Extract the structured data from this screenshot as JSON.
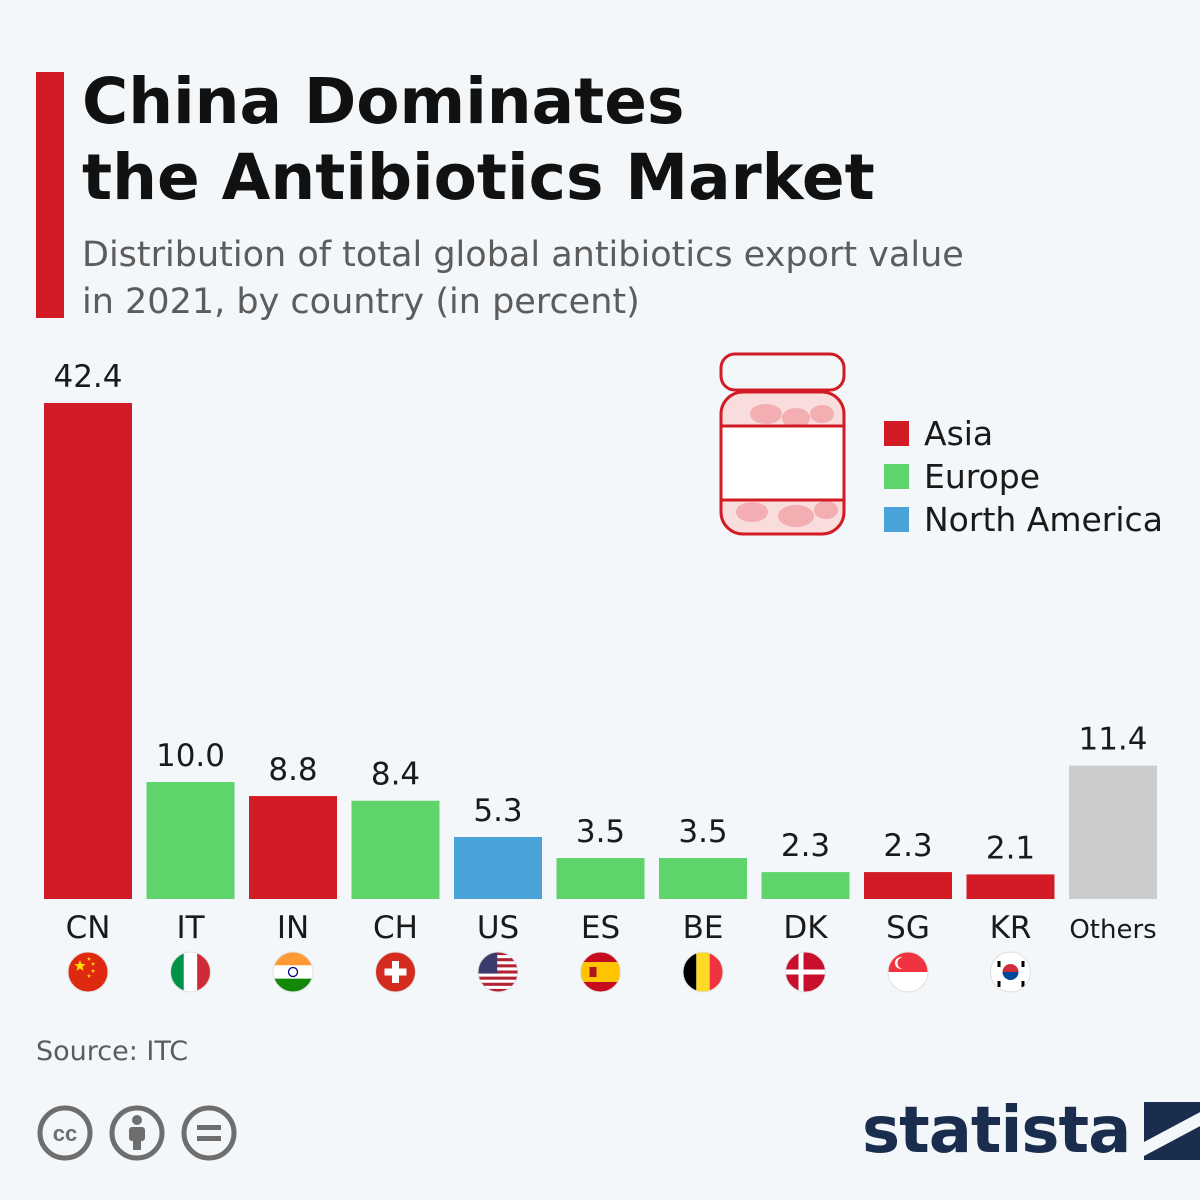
{
  "header": {
    "title": "China Dominates\nthe Antibiotics Market",
    "subtitle": "Distribution of total global antibiotics export value\nin 2021, by country (in percent)"
  },
  "legend": [
    {
      "label": "Asia",
      "color": "#d21b24"
    },
    {
      "label": "Europe",
      "color": "#5ed46b"
    },
    {
      "label": "North America",
      "color": "#4aa3d8"
    }
  ],
  "chart_data": {
    "type": "bar",
    "categories": [
      "CN",
      "IT",
      "IN",
      "CH",
      "US",
      "ES",
      "BE",
      "DK",
      "SG",
      "KR",
      "Others"
    ],
    "values": [
      42.4,
      10.0,
      8.8,
      8.4,
      5.3,
      3.5,
      3.5,
      2.3,
      2.3,
      2.1,
      11.4
    ],
    "value_labels": [
      "42.4",
      "10.0",
      "8.8",
      "8.4",
      "5.3",
      "3.5",
      "3.5",
      "2.3",
      "2.3",
      "2.1",
      "11.4"
    ],
    "regions": [
      "Asia",
      "Europe",
      "Asia",
      "Europe",
      "North America",
      "Europe",
      "Europe",
      "Europe",
      "Asia",
      "Asia",
      "Others"
    ],
    "region_colors": {
      "Asia": "#d21b24",
      "Europe": "#5ed46b",
      "North America": "#4aa3d8",
      "Others": "#cccccc"
    },
    "flags": [
      "china-flag-icon",
      "italy-flag-icon",
      "india-flag-icon",
      "switzerland-flag-icon",
      "usa-flag-icon",
      "spain-flag-icon",
      "belgium-flag-icon",
      "denmark-flag-icon",
      "singapore-flag-icon",
      "south-korea-flag-icon",
      null
    ],
    "ylim": [
      0,
      42.4
    ],
    "grid": false,
    "legend_position": "top-right"
  },
  "footer": {
    "source": "Source: ITC",
    "license_icons": [
      "creative-commons-icon",
      "attribution-icon",
      "no-derivatives-icon"
    ],
    "brand": "statista"
  }
}
